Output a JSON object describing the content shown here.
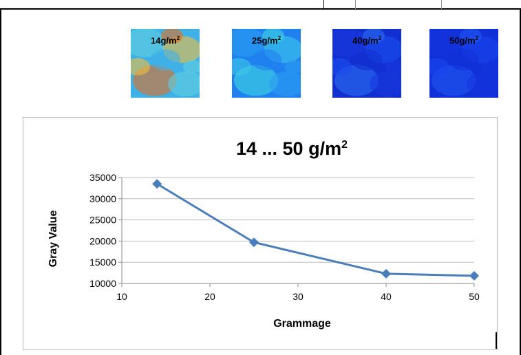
{
  "thumbnails": [
    {
      "label_value": "14g/m",
      "label_sup": "2",
      "colors": [
        "#f0c040",
        "#5fd0e0",
        "#e07020",
        "#40b0e8"
      ]
    },
    {
      "label_value": "25g/m",
      "label_sup": "2",
      "colors": [
        "#3cc8e8",
        "#2a9cf0",
        "#40d8e0",
        "#2080f0"
      ]
    },
    {
      "label_value": "40g/m",
      "label_sup": "2",
      "colors": [
        "#1a4ef0",
        "#1838e0",
        "#2a6cf0",
        "#1230d0"
      ]
    },
    {
      "label_value": "50g/m",
      "label_sup": "2",
      "colors": [
        "#1a44f0",
        "#1436e0",
        "#2058f0",
        "#1030d8"
      ]
    }
  ],
  "chart_data": {
    "type": "line",
    "title": "14 ... 50 g/m",
    "title_sup": "2",
    "xlabel": "Grammage",
    "ylabel": "Gray Value",
    "xlim": [
      10,
      50
    ],
    "ylim": [
      10000,
      35000
    ],
    "xticks": [
      10,
      20,
      30,
      40,
      50
    ],
    "yticks": [
      10000,
      15000,
      20000,
      25000,
      30000,
      35000
    ],
    "grid": true,
    "legend": "none",
    "series": [
      {
        "x": [
          14,
          25,
          40,
          50
        ],
        "values": [
          33500,
          19700,
          12300,
          11800
        ],
        "color": "#4a7ebb",
        "marker": "diamond"
      }
    ]
  }
}
